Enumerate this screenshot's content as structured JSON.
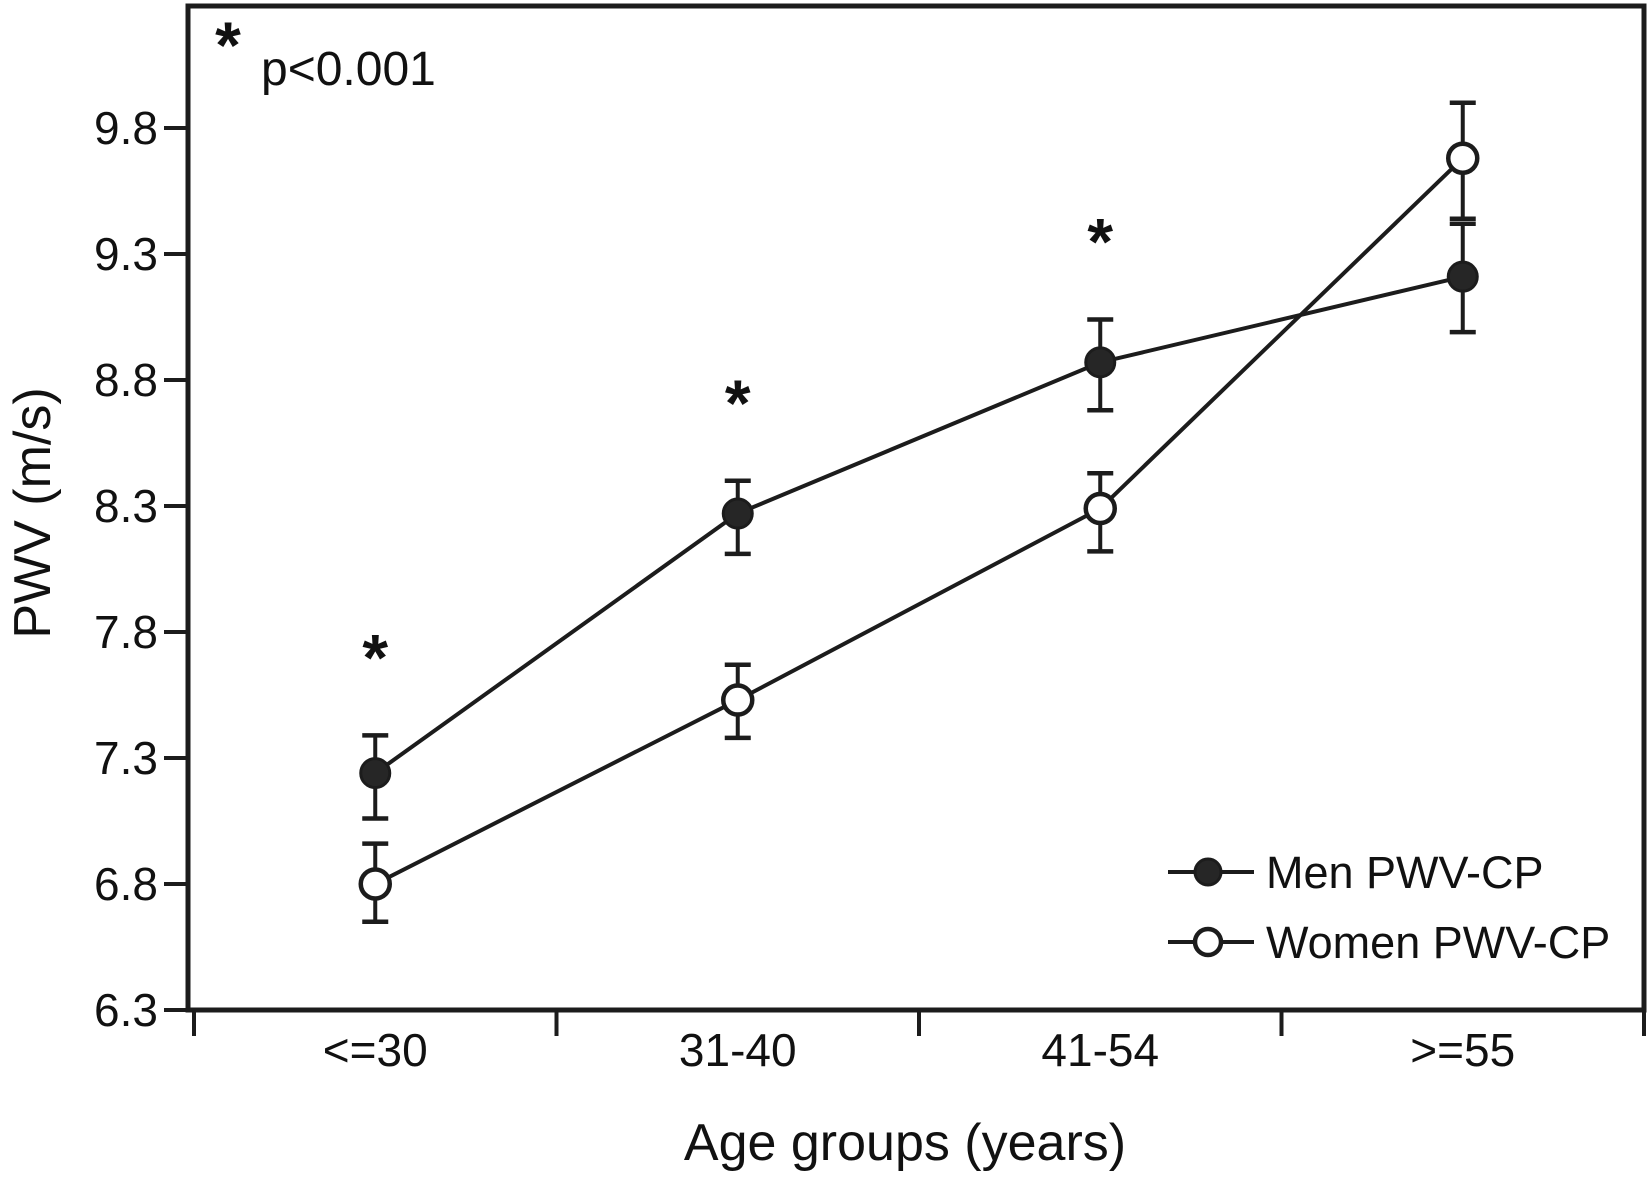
{
  "figure": {
    "annotation": {
      "symbol": "*",
      "text": "p<0.001"
    },
    "legend": {
      "position": "lower-right",
      "items": [
        {
          "label": "Men PWV-CP",
          "marker": "filled-circle"
        },
        {
          "label": "Women PWV-CP",
          "marker": "open-circle"
        }
      ]
    }
  },
  "chart_data": {
    "type": "line",
    "title": "",
    "xlabel": "Age groups (years)",
    "ylabel": "PWV (m/s)",
    "categories": [
      "<=30",
      "31-40",
      "41-54",
      ">=55"
    ],
    "yticks": [
      6.3,
      6.8,
      7.3,
      7.8,
      8.3,
      8.8,
      9.3,
      9.8
    ],
    "ylim": [
      6.3,
      10.28
    ],
    "grid": false,
    "legend_position": "lower right",
    "series": [
      {
        "name": "Men PWV-CP",
        "marker": "filled-circle",
        "values": [
          7.24,
          8.27,
          8.87,
          9.21
        ],
        "err_up": [
          0.15,
          0.13,
          0.17,
          0.21
        ],
        "err_down": [
          0.18,
          0.16,
          0.19,
          0.22
        ]
      },
      {
        "name": "Women PWV-CP",
        "marker": "open-circle",
        "values": [
          6.8,
          7.53,
          8.29,
          9.68
        ],
        "err_up": [
          0.16,
          0.14,
          0.14,
          0.22
        ],
        "err_down": [
          0.15,
          0.15,
          0.17,
          0.24
        ]
      }
    ],
    "significance": {
      "symbol": "*",
      "note": "p<0.001",
      "flags": [
        true,
        true,
        true,
        false
      ]
    }
  },
  "colors": {
    "ink": "#1c1c1c",
    "background": "#ffffff",
    "marker_fill": "#262626",
    "open_marker_fill": "#ffffff"
  }
}
